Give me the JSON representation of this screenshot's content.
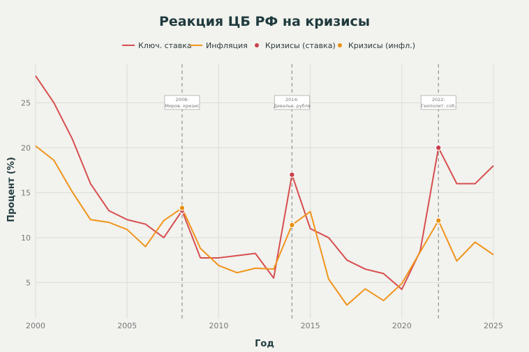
{
  "chart_data": {
    "type": "line",
    "title": "Реакция ЦБ РФ на кризисы",
    "xlabel": "Год",
    "ylabel": "Процент (%)",
    "xlim": [
      2000,
      2025
    ],
    "ylim": [
      1,
      29.3
    ],
    "x_ticks": [
      2000,
      2005,
      2010,
      2015,
      2020,
      2025
    ],
    "y_ticks": [
      5,
      10,
      15,
      20,
      25
    ],
    "grid": true,
    "legend_position": "top",
    "x": [
      2000,
      2001,
      2002,
      2003,
      2004,
      2005,
      2006,
      2007,
      2008,
      2009,
      2010,
      2011,
      2012,
      2013,
      2014,
      2015,
      2016,
      2017,
      2018,
      2019,
      2020,
      2021,
      2022,
      2023,
      2024,
      2025
    ],
    "series": [
      {
        "name": "Ключ. ставка",
        "color": "#d64e4e",
        "values": [
          28,
          25,
          21,
          16,
          13,
          12,
          11.5,
          10,
          13,
          7.75,
          7.75,
          8,
          8.25,
          5.5,
          17,
          11,
          10,
          7.5,
          6.5,
          6,
          4.25,
          8.5,
          20,
          16,
          16,
          18
        ]
      },
      {
        "name": "Инфляция",
        "color": "#f0941a",
        "values": [
          20.2,
          18.6,
          15.1,
          12,
          11.7,
          10.9,
          9,
          11.9,
          13.3,
          8.8,
          6.9,
          6.1,
          6.6,
          6.5,
          11.4,
          12.9,
          5.4,
          2.5,
          4.3,
          3.0,
          4.9,
          8.4,
          11.9,
          7.4,
          9.5,
          8.1
        ]
      }
    ],
    "markers": [
      {
        "name": "Кризисы (ставка)",
        "color": "#c9414a",
        "x": [
          2008,
          2014,
          2022
        ],
        "y": [
          13,
          17,
          20
        ]
      },
      {
        "name": "Кризисы (инфл.)",
        "color": "#e8900f",
        "x": [
          2008,
          2014,
          2022
        ],
        "y": [
          13.3,
          11.4,
          11.9
        ]
      }
    ],
    "annotations": [
      {
        "x": 2008,
        "line1": "2008:",
        "line2": "Миров. кризис"
      },
      {
        "x": 2014,
        "line1": "2014:",
        "line2": "Девальв. рубля"
      },
      {
        "x": 2022,
        "line1": "2022:",
        "line2": "Геополит. соб."
      }
    ]
  }
}
